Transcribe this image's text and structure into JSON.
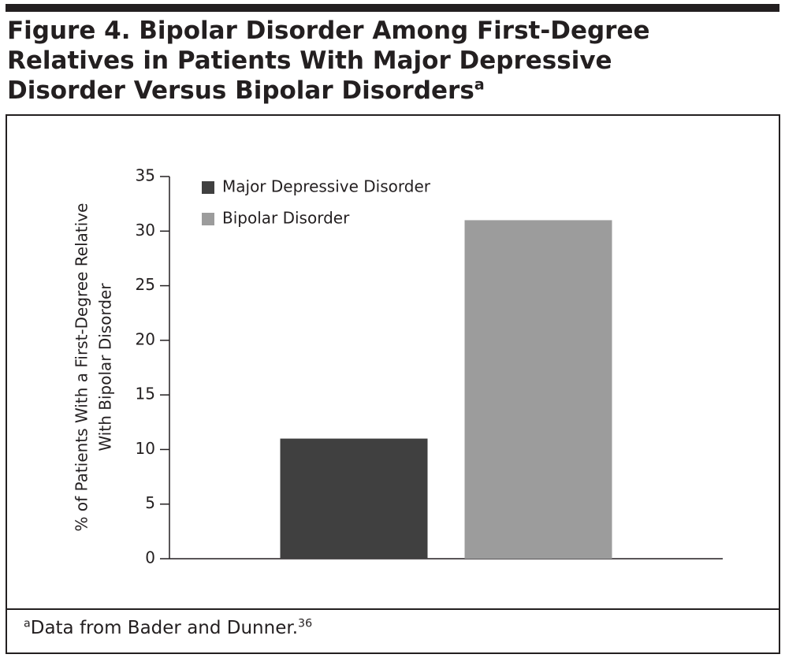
{
  "chart_data": {
    "type": "bar",
    "title": "Figure 4. Bipolar Disorder Among First-Degree Relatives in Patients With Major Depressive Disorder Versus Bipolar Disorders",
    "title_superscript": "a",
    "y_label": [
      "% of Patients With a First-Degree Relative",
      "With Bipolar Disorder"
    ],
    "categories": [
      null
    ],
    "series": [
      {
        "name": "Major Depressive Disorder",
        "color": "#404040",
        "values": [
          11
        ]
      },
      {
        "name": "Bipolar Disorder",
        "color": "#9c9c9c",
        "values": [
          31
        ]
      }
    ],
    "ylim": [
      0,
      35
    ],
    "yticks": [
      0,
      5,
      10,
      15,
      20,
      25,
      30,
      35
    ],
    "footnote": {
      "marker": "a",
      "text": "Data from Bader and Dunner.",
      "reference": "36"
    }
  }
}
